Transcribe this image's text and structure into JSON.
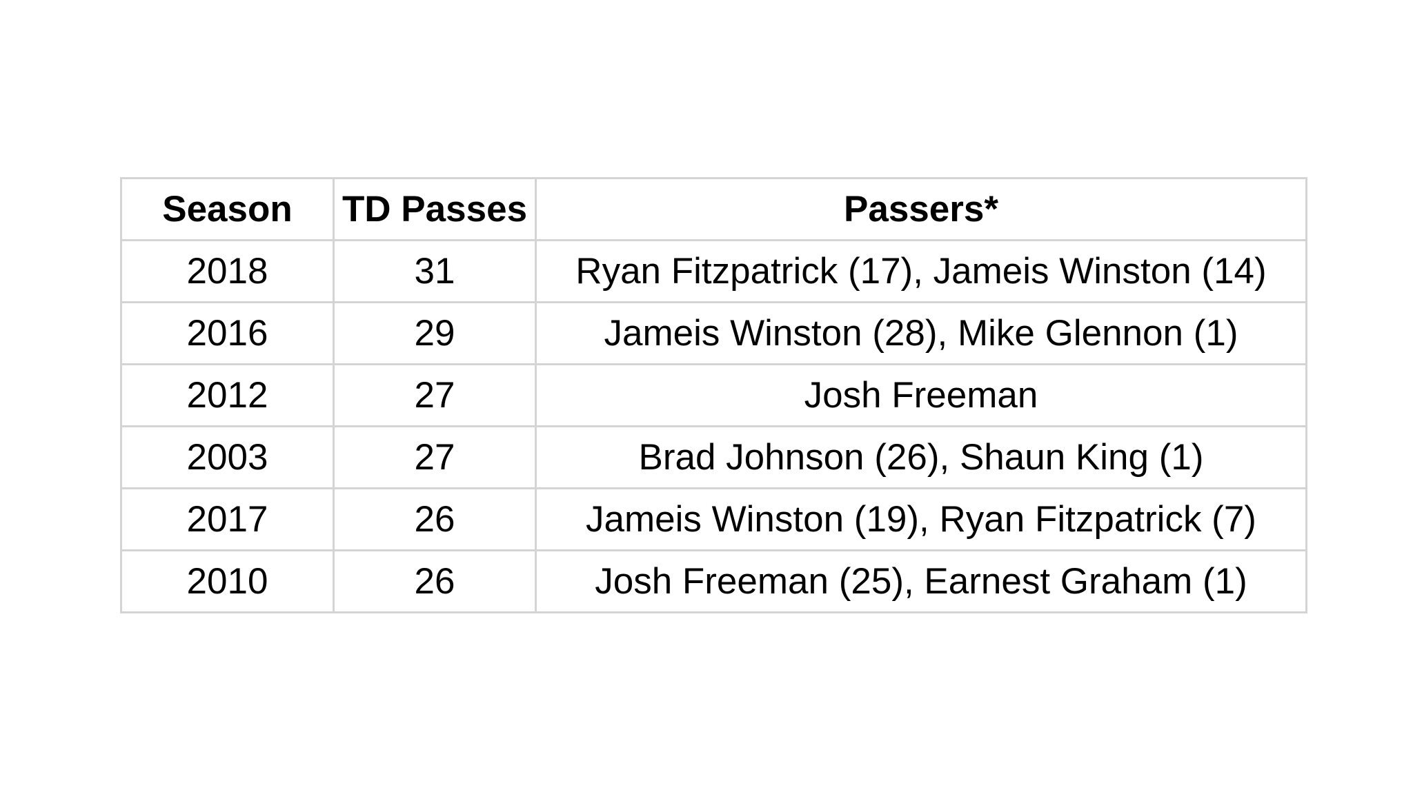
{
  "table": {
    "headers": {
      "season": "Season",
      "td_passes": "TD Passes",
      "passers": "Passers*"
    },
    "rows": [
      {
        "season": "2018",
        "td_passes": "31",
        "passers": "Ryan Fitzpatrick (17), Jameis Winston (14)"
      },
      {
        "season": "2016",
        "td_passes": "29",
        "passers": "Jameis Winston (28), Mike Glennon (1)"
      },
      {
        "season": "2012",
        "td_passes": "27",
        "passers": "Josh Freeman"
      },
      {
        "season": "2003",
        "td_passes": "27",
        "passers": "Brad Johnson (26), Shaun King (1)"
      },
      {
        "season": "2017",
        "td_passes": "26",
        "passers": "Jameis Winston (19), Ryan Fitzpatrick (7)"
      },
      {
        "season": "2010",
        "td_passes": "26",
        "passers": "Josh Freeman (25), Earnest Graham (1)"
      }
    ]
  }
}
